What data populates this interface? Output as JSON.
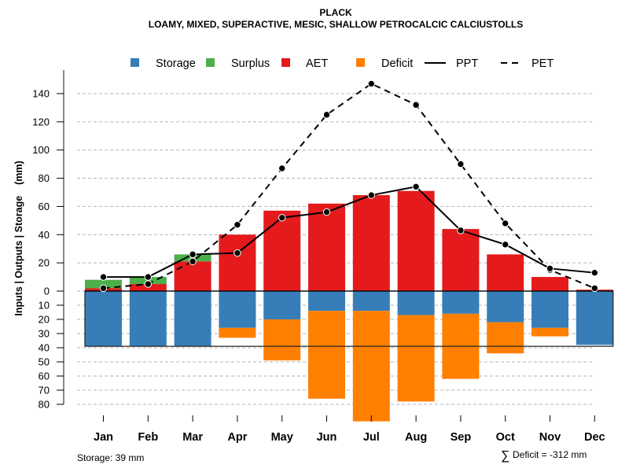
{
  "chart_data": {
    "type": "bar",
    "title": "PLACK",
    "subtitle": "LOAMY, MIXED, SUPERACTIVE, MESIC, SHALLOW PETROCALCIC CALCIUSTOLLS",
    "xlabel": "",
    "ylabel": "Inputs | Outputs | Storage    (mm)",
    "categories": [
      "Jan",
      "Feb",
      "Mar",
      "Apr",
      "May",
      "Jun",
      "Jul",
      "Aug",
      "Sep",
      "Oct",
      "Nov",
      "Dec"
    ],
    "y_upper_ticks": [
      0,
      20,
      40,
      60,
      80,
      100,
      120,
      140
    ],
    "y_lower_ticks": [
      10,
      20,
      30,
      40,
      50,
      60,
      70,
      80
    ],
    "ylim": [
      -80,
      150
    ],
    "grid": true,
    "legend_position": "top",
    "legend": [
      {
        "name": "Storage",
        "kind": "box",
        "color": "#377EB8"
      },
      {
        "name": "Surplus",
        "kind": "box",
        "color": "#4DAF4A"
      },
      {
        "name": "AET",
        "kind": "box",
        "color": "#E41A1C"
      },
      {
        "name": "Deficit",
        "kind": "box",
        "color": "#FF7F00"
      },
      {
        "name": "PPT",
        "kind": "solid-line",
        "color": "#000000"
      },
      {
        "name": "PET",
        "kind": "dashed-line",
        "color": "#000000"
      }
    ],
    "series": [
      {
        "name": "AET",
        "color": "#E41A1C",
        "values": [
          2,
          5,
          21,
          40,
          57,
          62,
          68,
          71,
          44,
          26,
          10,
          1
        ]
      },
      {
        "name": "Surplus",
        "color": "#4DAF4A",
        "values": [
          6,
          5,
          5,
          0,
          0,
          0,
          0,
          0,
          0,
          0,
          0,
          0
        ]
      },
      {
        "name": "Storage",
        "color": "#377EB8",
        "values": [
          39,
          39,
          39,
          26,
          20,
          14,
          14,
          17,
          16,
          22,
          26,
          38
        ]
      },
      {
        "name": "Deficit",
        "color": "#FF7F00",
        "values": [
          0,
          0,
          0,
          7,
          29,
          62,
          78,
          61,
          46,
          22,
          6,
          0
        ]
      },
      {
        "name": "PPT",
        "color": "#000000",
        "values": [
          10,
          10,
          26,
          27,
          52,
          56,
          68,
          74,
          43,
          33,
          16,
          13
        ]
      },
      {
        "name": "PET",
        "color": "#000000",
        "values": [
          2,
          5,
          21,
          47,
          87,
          125,
          147,
          132,
          90,
          48,
          15,
          2
        ]
      }
    ],
    "storage_capacity": 39,
    "annotations": {
      "storage": "Storage: 39 mm",
      "deficit_sum": "Deficit = -312 mm",
      "sigma": "∑"
    }
  }
}
